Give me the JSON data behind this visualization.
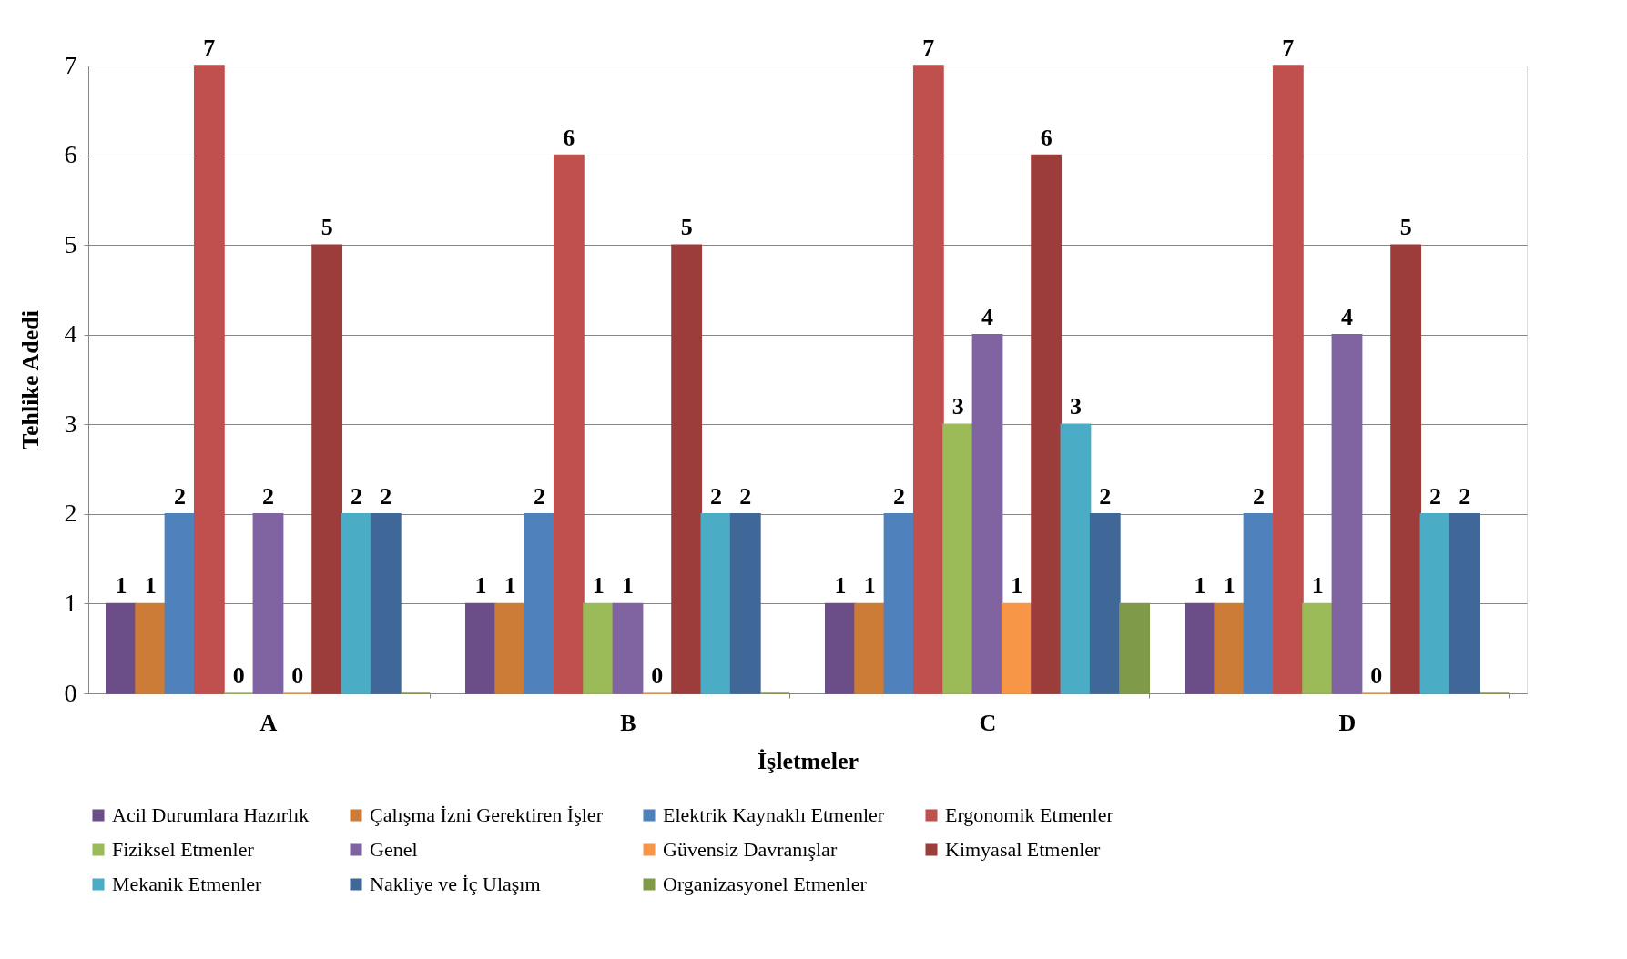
{
  "chart_data": {
    "type": "bar",
    "xlabel": "İşletmeler",
    "ylabel": "Tehlike Adedi",
    "categories": [
      "A",
      "B",
      "C",
      "D"
    ],
    "ylim": [
      0,
      7
    ],
    "yticks": [
      0,
      1,
      2,
      3,
      4,
      5,
      6,
      7
    ],
    "grid": "y",
    "legend": "bottom",
    "series": [
      {
        "name": "Acil Durumlara Hazırlık",
        "color": "#6b4e87",
        "values": [
          1,
          1,
          1,
          1
        ],
        "value_labels": [
          "1",
          "1",
          "1",
          "1"
        ]
      },
      {
        "name": "Çalışma İzni Gerektiren İşler",
        "color": "#cd7c37",
        "values": [
          1,
          1,
          1,
          1
        ],
        "value_labels": [
          "1",
          "1",
          "1",
          "1"
        ]
      },
      {
        "name": "Elektrik Kaynaklı Etmenler",
        "color": "#4f81bd",
        "values": [
          2,
          2,
          2,
          2
        ],
        "value_labels": [
          "2",
          "2",
          "2",
          "2"
        ]
      },
      {
        "name": "Ergonomik Etmenler",
        "color": "#c0504d",
        "values": [
          7,
          6,
          7,
          7
        ],
        "value_labels": [
          "7",
          "6",
          "7",
          "7"
        ]
      },
      {
        "name": "Fiziksel Etmenler",
        "color": "#9bbb59",
        "values": [
          0,
          1,
          3,
          1
        ],
        "value_labels": [
          "0",
          "1",
          "3",
          "1"
        ]
      },
      {
        "name": "Genel",
        "color": "#8064a2",
        "values": [
          2,
          1,
          4,
          4
        ],
        "value_labels": [
          "2",
          "1",
          "4",
          "4"
        ]
      },
      {
        "name": "Güvensiz Davranışlar",
        "color": "#f79646",
        "values": [
          0,
          0,
          1,
          0
        ],
        "value_labels": [
          "0",
          "0",
          "1",
          "0"
        ]
      },
      {
        "name": "Kimyasal Etmenler",
        "color": "#9c3d3b",
        "values": [
          5,
          5,
          6,
          5
        ],
        "value_labels": [
          "5",
          "5",
          "6",
          "5"
        ]
      },
      {
        "name": "Mekanik Etmenler",
        "color": "#4bacc6",
        "values": [
          2,
          2,
          3,
          2
        ],
        "value_labels": [
          "2",
          "2",
          "3",
          "2"
        ]
      },
      {
        "name": "Nakliye ve İç Ulaşım",
        "color": "#3f6898",
        "values": [
          2,
          2,
          2,
          2
        ],
        "value_labels": [
          "2",
          "2",
          "2",
          "2"
        ]
      },
      {
        "name": "Organizasyonel Etmenler",
        "color": "#7f9a48",
        "values": [
          0,
          0,
          1,
          0
        ],
        "value_labels": [
          null,
          null,
          null,
          null
        ]
      }
    ]
  }
}
